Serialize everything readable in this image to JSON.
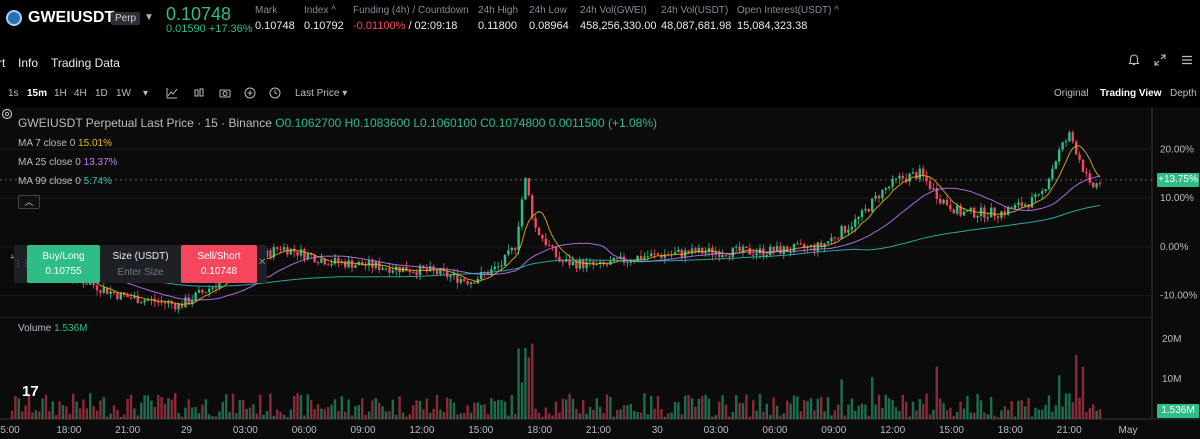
{
  "header": {
    "symbol": "GWEIUSDT",
    "badge": "Perp",
    "last_price": "0.10748",
    "change": "0.01590 +17.36%",
    "stats": [
      {
        "label": "Mark",
        "value": "0.10748",
        "neg": false
      },
      {
        "label": "Index ^",
        "value": "0.10792",
        "neg": false
      },
      {
        "label": "Funding (4h) / Countdown",
        "value_neg": "-0.01100%",
        "value_rest": " / 02:09:18"
      },
      {
        "label": "24h High",
        "value": "0.11800",
        "neg": false
      },
      {
        "label": "24h Low",
        "value": "0.08964",
        "neg": false
      },
      {
        "label": "24h Vol(GWEI)",
        "value": "458,256,330.00",
        "neg": false
      },
      {
        "label": "24h Vol(USDT)",
        "value": "48,087,681.98",
        "neg": false
      },
      {
        "label": "Open Interest(USDT) ^",
        "value": "15,084,323.38",
        "neg": false
      }
    ]
  },
  "tabs": [
    "rt",
    "Info",
    "Trading Data"
  ],
  "toolbar": {
    "timeframes": [
      "1s",
      "15m",
      "1H",
      "4H",
      "1D",
      "1W"
    ],
    "active_timeframe": "15m",
    "price_type": "Last Price",
    "views": [
      "Original",
      "Trading View",
      "Depth"
    ],
    "active_view": "Trading View"
  },
  "legend": {
    "title": "GWEIUSDT Perpetual Last Price · 15 · Binance",
    "ohlc": "O0.1062700 H0.1083600 L0.1060100 C0.1074800 0.0011500 (+1.08%)",
    "ma7_label": "MA 7 close 0",
    "ma7_value": "15.01%",
    "ma25_label": "MA 25 close 0",
    "ma25_value": "13.37%",
    "ma99_label": "MA 99 close 0",
    "ma99_value": "5.74%",
    "volume_label": "Volume",
    "volume_value": "1.536M"
  },
  "order": {
    "buy_label": "Buy/Long",
    "buy_price": "0.10755",
    "size_label": "Size (USDT)",
    "size_placeholder": "Enter Size",
    "sell_label": "Sell/Short",
    "sell_price": "0.10748"
  },
  "price_axis": [
    "20.00%",
    "10.00%",
    "0.00%",
    "-10.00%"
  ],
  "current_tag": "+13.75%",
  "volume_axis": [
    "20M",
    "10M"
  ],
  "volume_tag": "1.536M",
  "time_axis": [
    "5:00",
    "18:00",
    "21:00",
    "29",
    "03:00",
    "06:00",
    "09:00",
    "12:00",
    "15:00",
    "18:00",
    "21:00",
    "30",
    "03:00",
    "06:00",
    "09:00",
    "12:00",
    "15:00",
    "18:00",
    "21:00",
    "May"
  ],
  "tv_logo": "17",
  "colors": {
    "up": "#2ebd85",
    "down": "#f6465d",
    "ma7": "#f0b90b",
    "ma25": "#c77dff",
    "ma99": "#2ec4b6"
  },
  "chart_data": {
    "type": "candlestick",
    "y_unit": "% change",
    "ylim": [
      -15,
      25
    ],
    "ma_series": [
      {
        "name": "MA 7 close 0",
        "value": 15.01
      },
      {
        "name": "MA 25 close 0",
        "value": 13.37
      },
      {
        "name": "MA 99 close 0",
        "value": 5.74
      }
    ],
    "volume_ylim": [
      0,
      25
    ],
    "volume_unit": "M",
    "current_change": 13.75,
    "current_volume": 1.536
  }
}
